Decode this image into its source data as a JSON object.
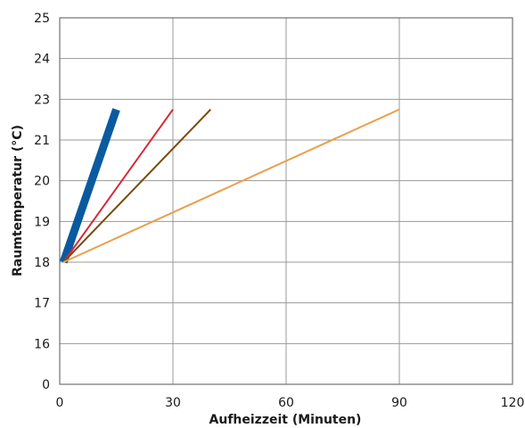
{
  "chart_data": {
    "type": "line",
    "title": "",
    "xlabel": "Aufheizzeit (Minuten)",
    "ylabel": "Raumtemperatur (°C)",
    "xlim": [
      0,
      120
    ],
    "x_ticks": [
      "0",
      "30",
      "60",
      "90",
      "120"
    ],
    "y_ticks": [
      "0",
      "16",
      "17",
      "18",
      "19",
      "20",
      "21",
      "23",
      "24",
      "25"
    ],
    "grid": true,
    "legend": "none",
    "series": [
      {
        "color": "#0a5aa0",
        "x": [
          1,
          15
        ],
        "y": [
          18,
          22.5
        ]
      },
      {
        "color": "#d62a3a",
        "x": [
          1,
          30
        ],
        "y": [
          18,
          22.5
        ]
      },
      {
        "color": "#7a4a0a",
        "x": [
          1,
          40
        ],
        "y": [
          18,
          22.5
        ]
      },
      {
        "color": "#e8a04a",
        "x": [
          1,
          90
        ],
        "y": [
          18,
          22.5
        ]
      }
    ]
  }
}
